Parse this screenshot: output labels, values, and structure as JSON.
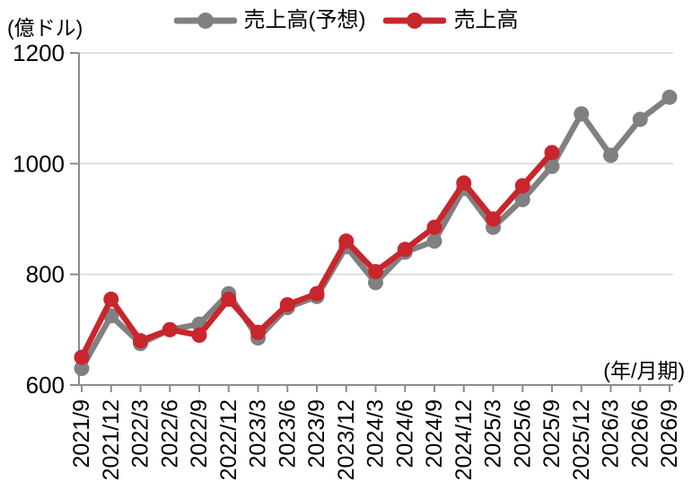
{
  "chart_data": {
    "type": "line",
    "title": "",
    "y_unit_label": "(億ドル)",
    "x_unit_label": "(年/月期)",
    "ylim": [
      600,
      1200
    ],
    "yticks": [
      600,
      800,
      1000,
      1200
    ],
    "grid": "horizontal gridlines at 800/1000/1200, light gray",
    "legend_position": "top-center",
    "categories": [
      "2021/9",
      "2021/12",
      "2022/3",
      "2022/6",
      "2022/9",
      "2022/12",
      "2023/3",
      "2023/6",
      "2023/9",
      "2023/12",
      "2024/3",
      "2024/6",
      "2024/9",
      "2024/12",
      "2025/3",
      "2025/6",
      "2025/9",
      "2025/12",
      "2026/3",
      "2026/6",
      "2026/9"
    ],
    "series": [
      {
        "key": "forecast",
        "name": "売上高(予想)",
        "color": "#808080",
        "values": [
          630,
          725,
          675,
          700,
          710,
          765,
          685,
          740,
          760,
          850,
          785,
          840,
          860,
          955,
          885,
          935,
          995,
          1090,
          1015,
          1080,
          1120
        ]
      },
      {
        "key": "actual",
        "name": "売上高",
        "color": "#C9252C",
        "values": [
          650,
          755,
          680,
          700,
          690,
          755,
          695,
          745,
          765,
          860,
          805,
          845,
          885,
          965,
          900,
          960,
          1020,
          null,
          null,
          null,
          null
        ]
      }
    ]
  },
  "colors": {
    "background": "#FFFFFF",
    "gridline": "#D9D9D9",
    "axis": "#8C8C8C",
    "text": "#000000"
  }
}
